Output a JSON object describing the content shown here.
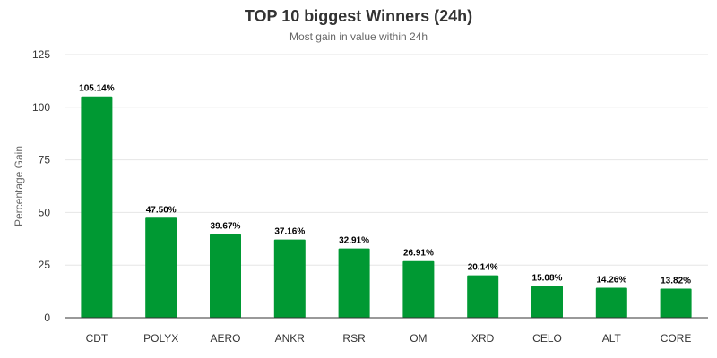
{
  "chart_data": {
    "type": "bar",
    "title": "TOP 10 biggest Winners (24h)",
    "subtitle": "Most gain in value within 24h",
    "xlabel": "",
    "ylabel": "Percentage Gain",
    "ylim": [
      0,
      125
    ],
    "yticks": [
      0,
      25,
      50,
      75,
      100,
      125
    ],
    "grid": true,
    "legend": "none",
    "bar_color": "#009933",
    "categories": [
      "CDT",
      "POLYX",
      "AERO",
      "ANKR",
      "RSR",
      "OM",
      "XRD",
      "CELO",
      "ALT",
      "CORE"
    ],
    "values": [
      105.14,
      47.5,
      39.67,
      37.16,
      32.91,
      26.91,
      20.14,
      15.08,
      14.26,
      13.82
    ],
    "data_labels": [
      "105.14%",
      "47.50%",
      "39.67%",
      "37.16%",
      "32.91%",
      "26.91%",
      "20.14%",
      "15.08%",
      "14.26%",
      "13.82%"
    ]
  }
}
